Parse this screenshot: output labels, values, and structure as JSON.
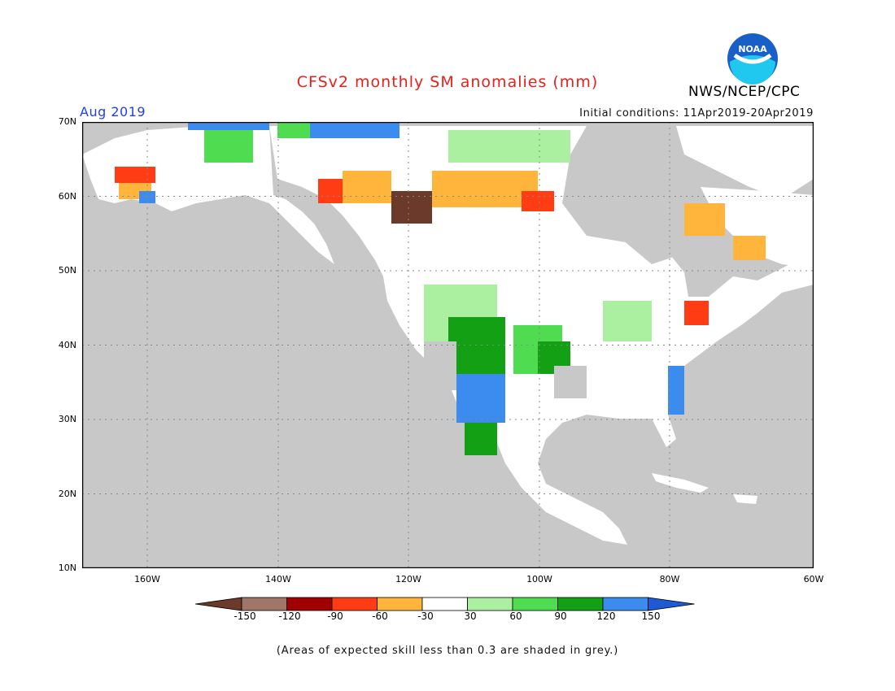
{
  "header": {
    "title": "CFSv2 monthly SM anomalies (mm)",
    "agency": "NWS/NCEP/CPC",
    "logo_text": "NOAA",
    "valid_month": "Aug 2019",
    "initial_conditions": "Initial conditions: 11Apr2019-20Apr2019"
  },
  "map": {
    "projection": "lat-lon",
    "lon_range": [
      -172,
      -60
    ],
    "lat_range": [
      10,
      70
    ],
    "lat_ticks": [
      "70N",
      "60N",
      "50N",
      "40N",
      "30N",
      "20N",
      "10N"
    ],
    "lat_tick_values": [
      70,
      60,
      50,
      40,
      30,
      20,
      10
    ],
    "lon_ticks": [
      "160W",
      "140W",
      "120W",
      "100W",
      "80W",
      "60W"
    ],
    "lon_tick_values": [
      -160,
      -140,
      -120,
      -100,
      -80,
      -60
    ],
    "gridlines": "dotted",
    "land_mask_color": "#ffffff",
    "low_skill_color": "#c8c8c8",
    "ocean_color": "#c8c8c8"
  },
  "legend": {
    "bins": [
      "-150",
      "-120",
      "-90",
      "-60",
      "-30",
      "30",
      "60",
      "90",
      "120",
      "150"
    ],
    "colors": [
      "#6b3a2a",
      "#a0766a",
      "#a00000",
      "#ff3c14",
      "#ffb43c",
      "#ffffff",
      "#aaf0a0",
      "#50dc50",
      "#14a014",
      "#3c8cf0",
      "#1e5ad2"
    ],
    "footnote": "(Areas of expected skill less than 0.3 are shaded in grey.)"
  },
  "colors": {
    "title": "#e8201c",
    "valid_month": "#2040f0",
    "noaa_blue": "#1860c8",
    "noaa_cyan": "#20c8f0"
  }
}
